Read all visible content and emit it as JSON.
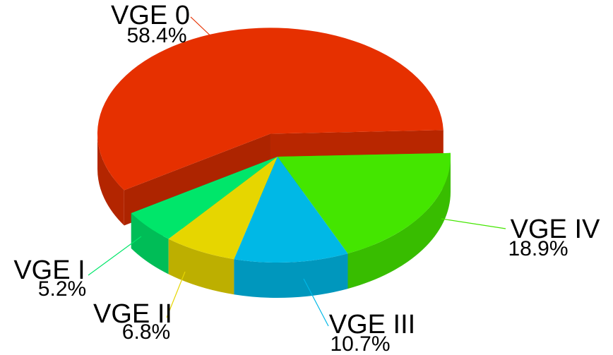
{
  "chart_data": {
    "type": "pie",
    "categories": [
      "VGE 0",
      "VGE I",
      "VGE II",
      "VGE III",
      "VGE IV"
    ],
    "values": [
      58.4,
      5.2,
      6.8,
      10.7,
      18.9
    ],
    "value_labels": [
      "58.4%",
      "5.2%",
      "6.8%",
      "10.7%",
      "18.9%"
    ],
    "colors": [
      "#e63000",
      "#00e66a",
      "#e6d600",
      "#00b8e6",
      "#44e600"
    ]
  }
}
